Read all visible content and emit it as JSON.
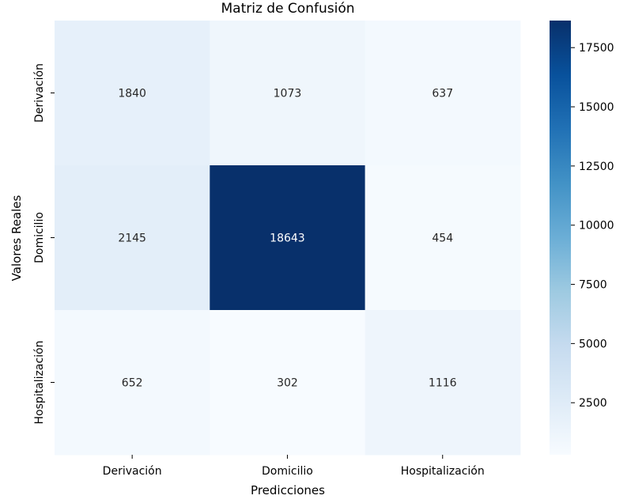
{
  "chart_data": {
    "type": "heatmap",
    "title": "Matriz de Confusión",
    "xlabel": "Predicciones",
    "ylabel": "Valores Reales",
    "x_categories": [
      "Derivación",
      "Domicilio",
      "Hospitalización"
    ],
    "y_categories": [
      "Derivación",
      "Domicilio",
      "Hospitalización"
    ],
    "values": [
      [
        1840,
        1073,
        637
      ],
      [
        2145,
        18643,
        454
      ],
      [
        652,
        302,
        1116
      ]
    ],
    "colormap": "Blues",
    "color_range": [
      302,
      18643
    ],
    "colorbar_ticks": [
      2500,
      5000,
      7500,
      10000,
      12500,
      15000,
      17500
    ],
    "colorbar_tick_labels": [
      "2500",
      "5000",
      "7500",
      "10000",
      "12500",
      "15000",
      "17500"
    ]
  }
}
